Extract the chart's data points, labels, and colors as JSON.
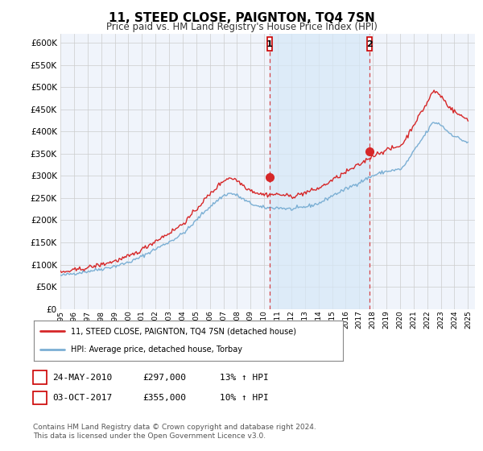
{
  "title": "11, STEED CLOSE, PAIGNTON, TQ4 7SN",
  "subtitle": "Price paid vs. HM Land Registry's House Price Index (HPI)",
  "ylim": [
    0,
    620000
  ],
  "yticks": [
    0,
    50000,
    100000,
    150000,
    200000,
    250000,
    300000,
    350000,
    400000,
    450000,
    500000,
    550000,
    600000
  ],
  "xlim_start": 1995.0,
  "xlim_end": 2025.5,
  "hpi_color": "#7bafd4",
  "hpi_fill_color": "#d6e8f7",
  "price_color": "#d62728",
  "bg_color": "#f0f4fb",
  "sale1_x": 2010.39,
  "sale1_y": 297000,
  "sale2_x": 2017.75,
  "sale2_y": 355000,
  "sale1_label": "1",
  "sale2_label": "2",
  "legend_line1": "11, STEED CLOSE, PAIGNTON, TQ4 7SN (detached house)",
  "legend_line2": "HPI: Average price, detached house, Torbay",
  "table_row1": [
    "1",
    "24-MAY-2010",
    "£297,000",
    "13% ↑ HPI"
  ],
  "table_row2": [
    "2",
    "03-OCT-2017",
    "£355,000",
    "10% ↑ HPI"
  ],
  "footnote": "Contains HM Land Registry data © Crown copyright and database right 2024.\nThis data is licensed under the Open Government Licence v3.0."
}
